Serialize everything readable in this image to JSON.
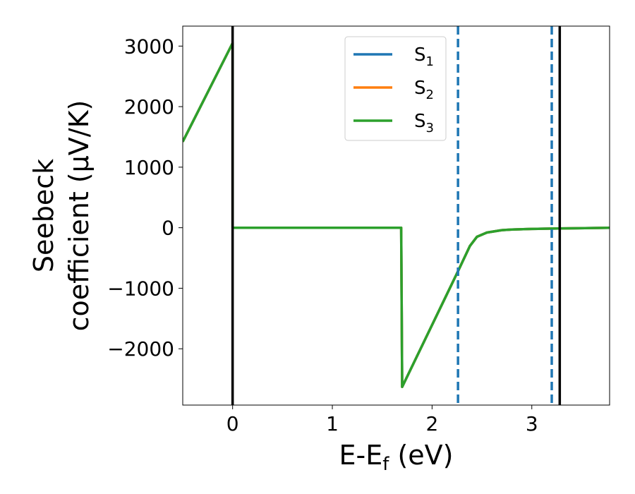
{
  "chart_data": {
    "type": "line",
    "xlabel": {
      "main": "E-E",
      "sub": "f",
      "unit": " (eV)"
    },
    "ylabel": {
      "line1": "Seebeck",
      "line2": "coefficient  (μV/K)"
    },
    "xlim": [
      -0.5,
      3.78
    ],
    "ylim": [
      -2930,
      3330
    ],
    "xticks": [
      0,
      1,
      2,
      3
    ],
    "xtick_labels": [
      "0",
      "1",
      "2",
      "3"
    ],
    "yticks": [
      -2000,
      -1000,
      0,
      1000,
      2000,
      3000
    ],
    "ytick_labels": [
      "−2000",
      "−1000",
      "0",
      "1000",
      "2000",
      "3000"
    ],
    "grid": false,
    "legend": {
      "placement": "top-center",
      "entries": [
        {
          "main": "S",
          "sub": "1",
          "color": "#1f77b4"
        },
        {
          "main": "S",
          "sub": "2",
          "color": "#ff7f0e"
        },
        {
          "main": "S",
          "sub": "3",
          "color": "#2ca02c"
        }
      ]
    },
    "vlines": [
      {
        "x": 0.0,
        "style": "solid",
        "color": "#000000"
      },
      {
        "x": 3.28,
        "style": "solid",
        "color": "#000000"
      },
      {
        "x": 2.26,
        "style": "dashed",
        "color": "#1f77b4"
      },
      {
        "x": 3.2,
        "style": "dashed",
        "color": "#1f77b4"
      }
    ],
    "series": [
      {
        "name": "S1",
        "color": "#1f77b4",
        "x": [
          -0.5,
          0.0,
          0.0,
          1.69,
          1.69,
          1.7,
          2.26,
          2.38,
          2.45,
          2.55,
          2.7,
          2.8,
          3.0,
          3.2,
          3.4,
          3.6,
          3.78
        ],
        "y": [
          1420,
          3050,
          0,
          0,
          0,
          -2630,
          -720,
          -300,
          -150,
          -80,
          -40,
          -30,
          -20,
          -15,
          -10,
          -5,
          0
        ]
      },
      {
        "name": "S2",
        "color": "#ff7f0e",
        "x": [
          -0.5,
          0.0,
          0.0,
          1.69,
          1.69,
          1.7,
          2.26,
          2.38,
          2.45,
          2.55,
          2.7,
          2.8,
          3.0,
          3.2,
          3.4,
          3.6,
          3.78
        ],
        "y": [
          1420,
          3050,
          0,
          0,
          0,
          -2630,
          -720,
          -300,
          -150,
          -80,
          -40,
          -30,
          -20,
          -15,
          -10,
          -5,
          0
        ]
      },
      {
        "name": "S3",
        "color": "#2ca02c",
        "x": [
          -0.5,
          0.0,
          0.0,
          1.69,
          1.69,
          1.7,
          2.26,
          2.38,
          2.45,
          2.55,
          2.7,
          2.8,
          3.0,
          3.2,
          3.4,
          3.6,
          3.78
        ],
        "y": [
          1420,
          3050,
          0,
          0,
          0,
          -2630,
          -720,
          -300,
          -150,
          -80,
          -40,
          -30,
          -20,
          -15,
          -10,
          -5,
          0
        ]
      }
    ]
  }
}
